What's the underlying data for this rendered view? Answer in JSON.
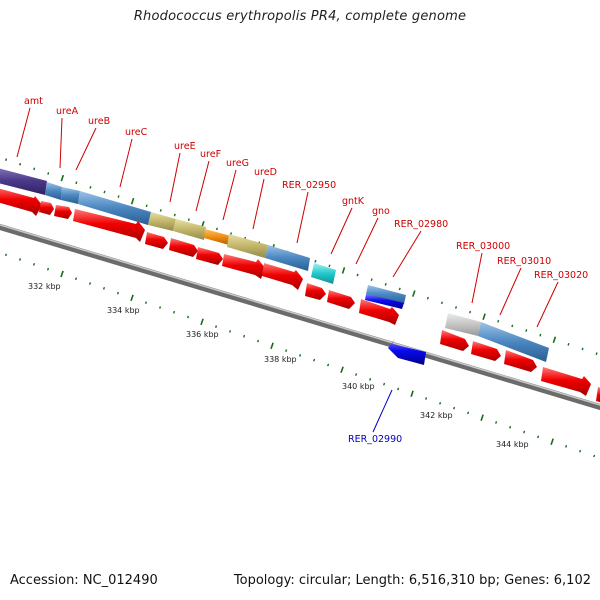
{
  "header": {
    "title": "Rhodococcus erythropolis PR4, complete genome"
  },
  "footer": {
    "accession": "Accession: NC_012490",
    "summary": "Topology: circular; Length: 6,516,310 bp; Genes: 6,102"
  },
  "colors": {
    "cds": "#ee0000",
    "reverse_cds": "#0000ee",
    "label_forward": "#cc0000",
    "label_reverse": "#0000bb",
    "backbone": "#8a8a8a",
    "tick": "#1a6b1a"
  },
  "scale_labels": [
    "332 kbp",
    "334 kbp",
    "336 kbp",
    "338 kbp",
    "340 kbp",
    "342 kbp",
    "344 kbp"
  ],
  "gene_labels_forward": [
    "amt",
    "ureA",
    "ureB",
    "ureC",
    "ureE",
    "ureF",
    "ureG",
    "ureD",
    "RER_02950",
    "gntK",
    "gno",
    "RER_02980",
    "RER_03000",
    "RER_03010",
    "RER_03020"
  ],
  "gene_labels_reverse": [
    "RER_02990"
  ]
}
